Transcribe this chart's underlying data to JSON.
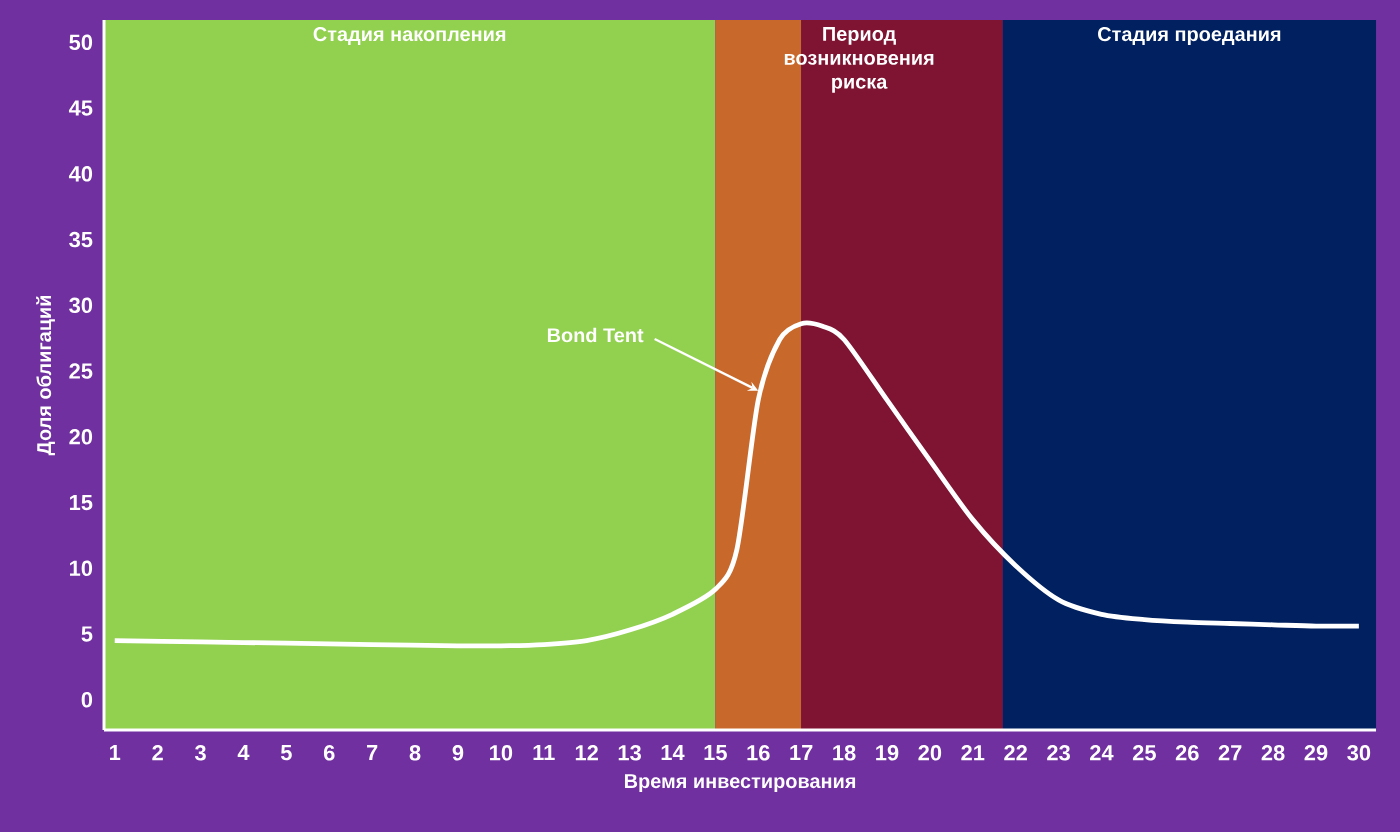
{
  "chart_data": {
    "type": "line",
    "xlabel": "Время инвестирования",
    "ylabel": "Доля облигаций",
    "x": [
      1,
      3,
      5,
      7,
      9,
      10,
      11,
      12,
      13,
      14,
      15,
      15.5,
      16,
      16.5,
      17,
      17.5,
      18,
      19,
      20,
      21,
      22,
      23,
      24,
      25,
      26,
      27,
      28,
      29,
      30
    ],
    "series": [
      {
        "color": "#ffffff",
        "values": [
          4.5,
          4.4,
          4.3,
          4.2,
          4.1,
          4.1,
          4.2,
          4.5,
          5.3,
          6.5,
          8.4,
          11.4,
          22.8,
          27.4,
          28.6,
          28.4,
          27.4,
          22.8,
          18.2,
          13.7,
          10.2,
          7.6,
          6.5,
          6.1,
          5.9,
          5.8,
          5.7,
          5.6,
          5.6
        ]
      }
    ],
    "marker": "none",
    "xlim": [
      0.75,
      30.4
    ],
    "ylim": [
      -2.3,
      51.7
    ],
    "xticks": [
      1,
      2,
      3,
      4,
      5,
      6,
      7,
      8,
      9,
      10,
      11,
      12,
      13,
      14,
      15,
      16,
      17,
      18,
      19,
      20,
      21,
      22,
      23,
      24,
      25,
      26,
      27,
      28,
      29,
      30
    ],
    "yticks": [
      0,
      5,
      10,
      15,
      20,
      25,
      30,
      35,
      40,
      45,
      50
    ],
    "bands": [
      {
        "axis": "x",
        "from": 0.75,
        "to": 15,
        "label": "Стадия накопления",
        "color": "#92d050"
      },
      {
        "axis": "x",
        "from": 15,
        "to": 17,
        "color": "#c8692b"
      },
      {
        "axis": "x",
        "from": 17,
        "to": 21.7,
        "color": "#7f1332"
      },
      {
        "axis": "x",
        "from": 21.7,
        "to": 30.4,
        "label": "Стадия проедания",
        "color": "#002060"
      }
    ],
    "annotations": [
      {
        "text": "Bond Tent",
        "x": 16,
        "y": 23.5
      },
      "Период возникновения риска"
    ]
  }
}
